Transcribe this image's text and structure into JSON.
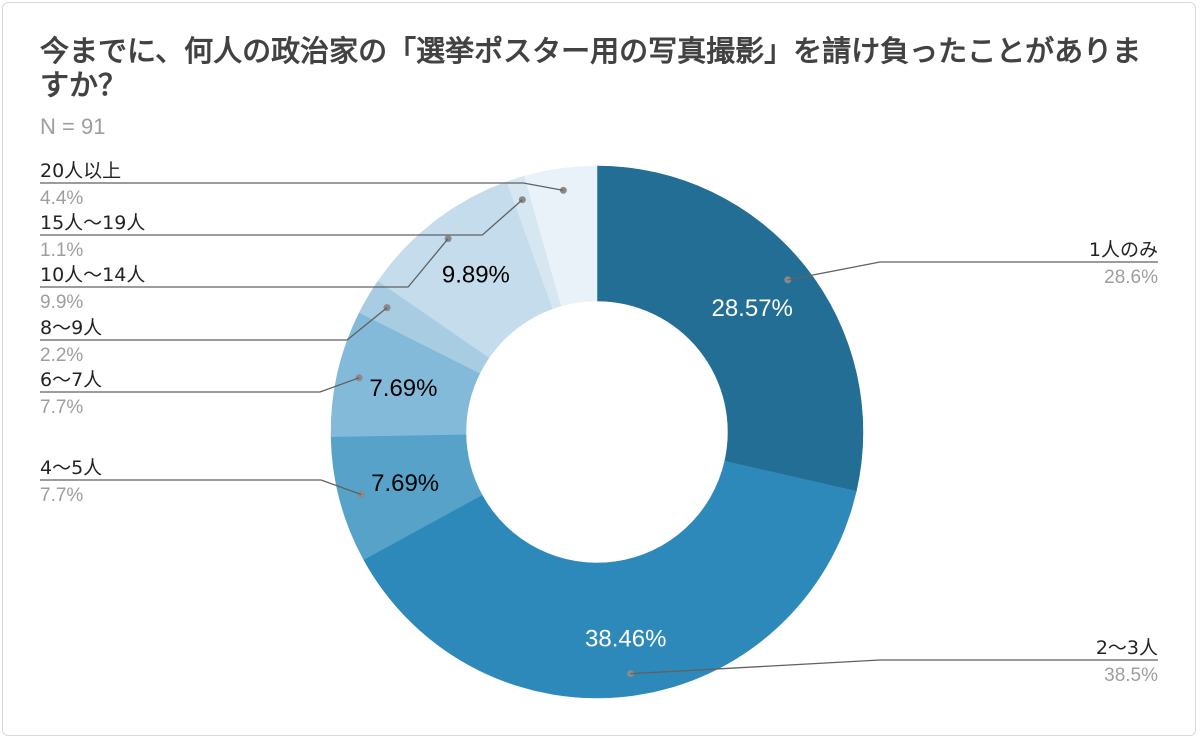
{
  "chart_data": {
    "type": "pie",
    "title": "今までに、何人の政治家の「選挙ポスター用の写真撮影」を請け負ったことがありますか？",
    "subtitle": "N = 91",
    "donut": true,
    "slices": [
      {
        "name": "1人のみ",
        "value": 28.57,
        "slice_label": "28.57%",
        "legend_pct": "28.6%",
        "color": "#226e94",
        "label_color": "#ffffff",
        "side": "right"
      },
      {
        "name": "2〜3人",
        "value": 38.46,
        "slice_label": "38.46%",
        "legend_pct": "38.5%",
        "color": "#2e89bb",
        "label_color": "#ffffff",
        "side": "right"
      },
      {
        "name": "4〜5人",
        "value": 7.69,
        "slice_label": "7.69%",
        "legend_pct": "7.7%",
        "color": "#56a2c8",
        "label_color": "#000000",
        "side": "left"
      },
      {
        "name": "6〜7人",
        "value": 7.69,
        "slice_label": "7.69%",
        "legend_pct": "7.7%",
        "color": "#84bad9",
        "label_color": "#000000",
        "side": "left"
      },
      {
        "name": "8〜9人",
        "value": 2.2,
        "slice_label": "",
        "legend_pct": "2.2%",
        "color": "#a8cde3",
        "label_color": "#000000",
        "side": "left"
      },
      {
        "name": "10人〜14人",
        "value": 9.89,
        "slice_label": "9.89%",
        "legend_pct": "9.9%",
        "color": "#c4dcec",
        "label_color": "#000000",
        "side": "left"
      },
      {
        "name": "15人〜19人",
        "value": 1.1,
        "slice_label": "",
        "legend_pct": "1.1%",
        "color": "#d6e7f2",
        "label_color": "#000000",
        "side": "left"
      },
      {
        "name": "20人以上",
        "value": 4.4,
        "slice_label": "",
        "legend_pct": "4.4%",
        "color": "#e9f2f9",
        "label_color": "#000000",
        "side": "left"
      }
    ]
  }
}
